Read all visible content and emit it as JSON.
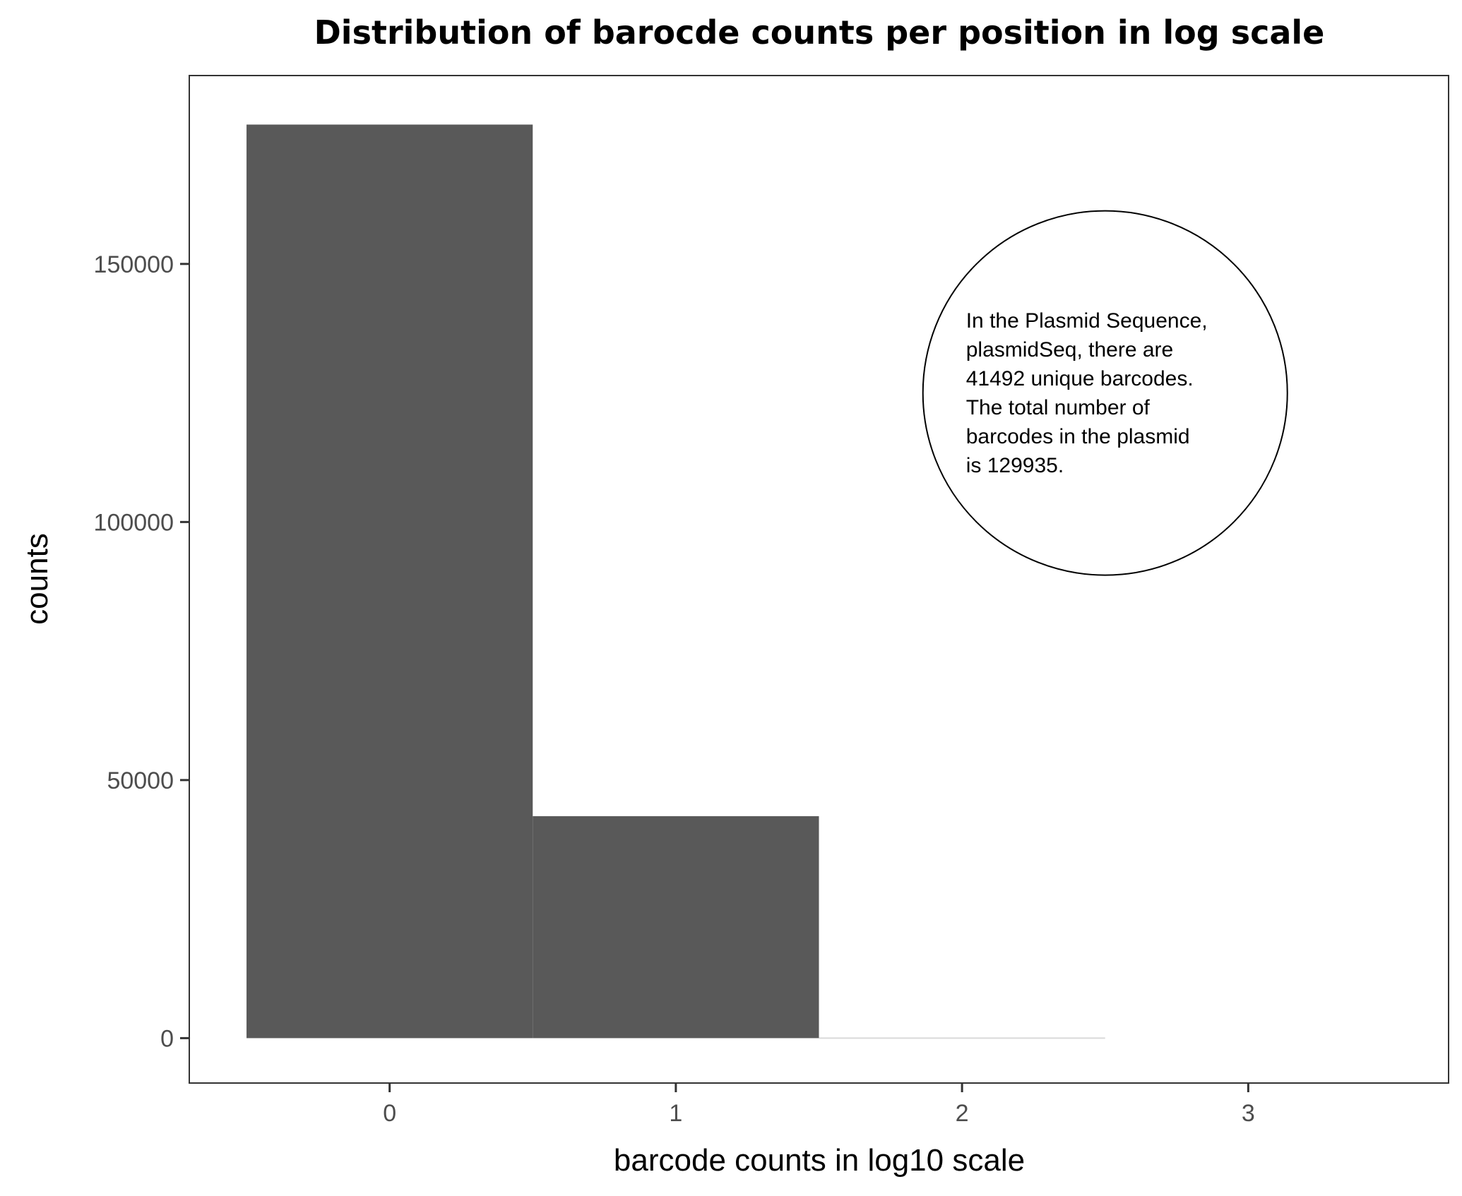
{
  "chart_data": {
    "type": "bar",
    "title": "Distribution of barocde counts per position in log scale",
    "xlabel": "barcode counts in log10 scale",
    "ylabel": "counts",
    "bins": [
      {
        "x": 0,
        "value": 177000
      },
      {
        "x": 1,
        "value": 43000
      },
      {
        "x": 2,
        "value": 0
      }
    ],
    "bin_width": 1,
    "xlim": [
      -0.7,
      3.7
    ],
    "ylim": [
      -8700,
      186500
    ],
    "x_ticks": [
      "0",
      "1",
      "2",
      "3"
    ],
    "y_ticks": [
      "0",
      "50000",
      "100000",
      "150000"
    ],
    "grid": false,
    "bar_color": "#595959",
    "annotation": {
      "x": 2.5,
      "y": 125000,
      "lines": [
        "In the Plasmid Sequence,",
        "plasmidSeq, there are",
        "41492 unique barcodes.",
        "The total number of",
        "barcodes in the plasmid",
        "is 129935."
      ]
    }
  }
}
